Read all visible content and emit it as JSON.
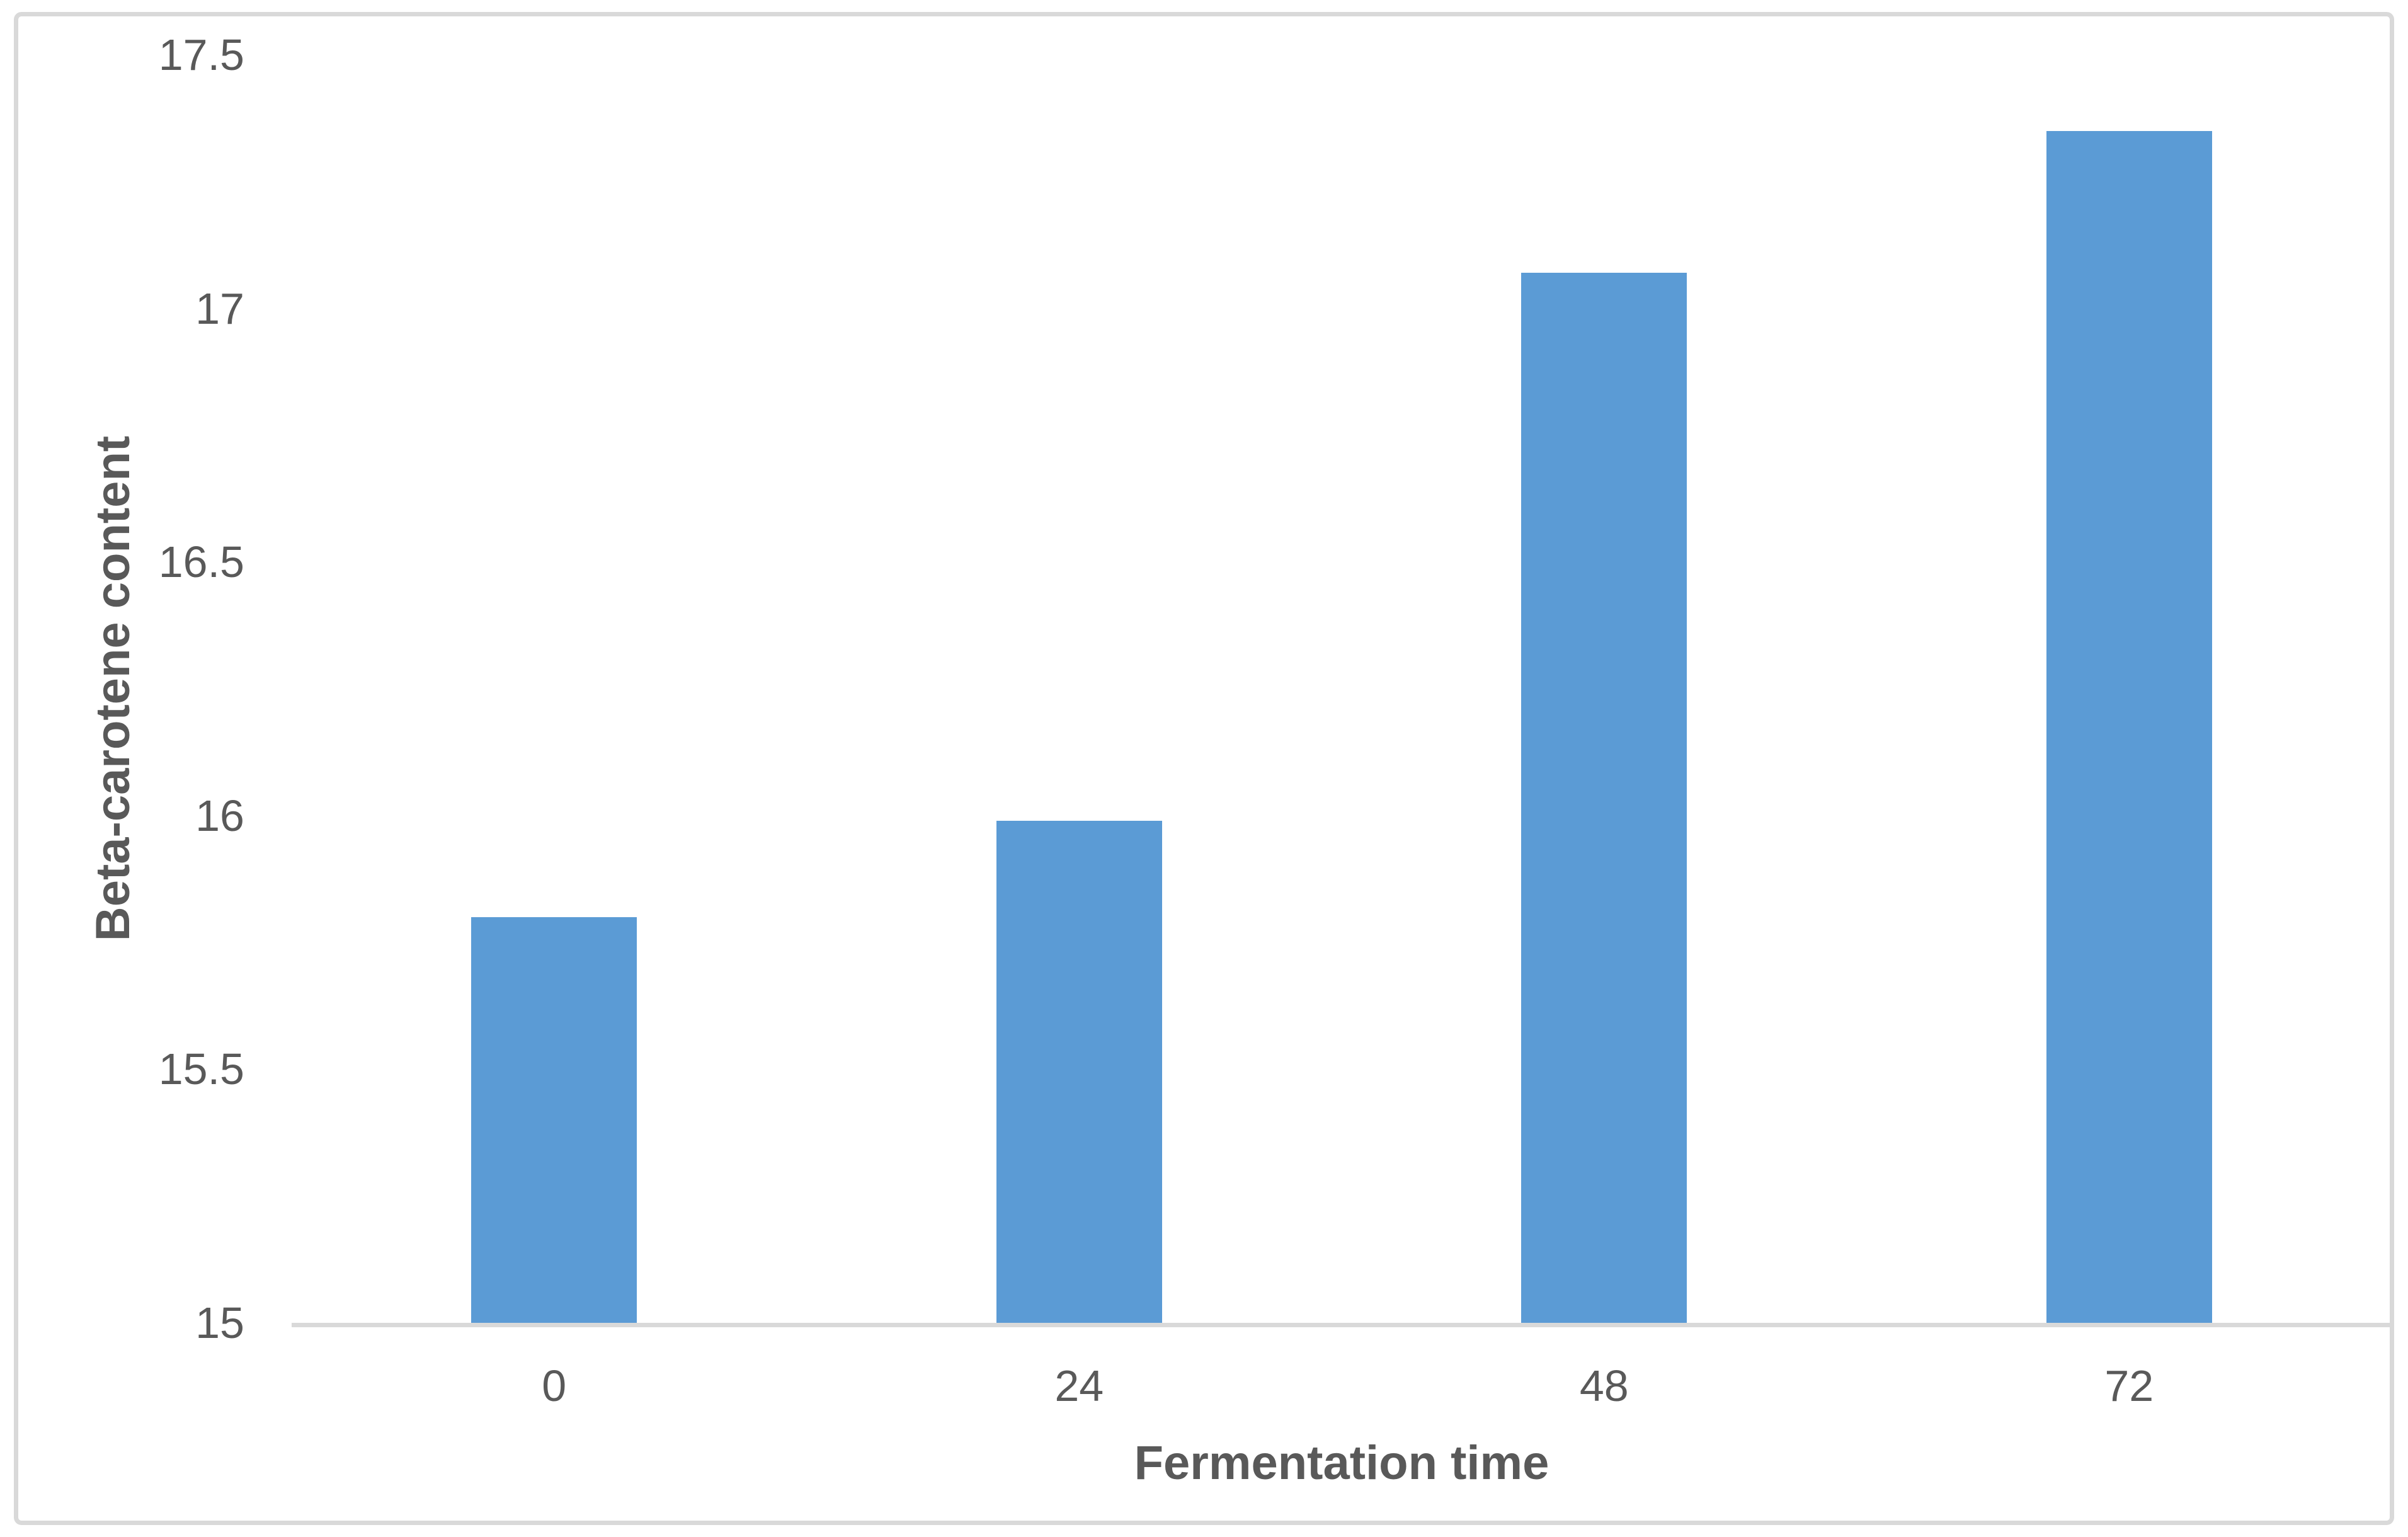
{
  "figure": {
    "background": "#ffffff",
    "border_color": "#d9d9d9",
    "text_color": "#595959"
  },
  "chart_data": {
    "type": "bar",
    "title": "",
    "xlabel": "Fermentation time",
    "ylabel": "Beta-carotene content",
    "categories": [
      "0",
      "24",
      "48",
      "72"
    ],
    "values": [
      15.8,
      15.99,
      17.07,
      17.35
    ],
    "ylim": [
      15,
      17.5
    ],
    "ytick_step": 0.5,
    "ytick_labels": [
      "15",
      "15.5",
      "16",
      "16.5",
      "17",
      "17.5"
    ],
    "bar_color": "#5b9bd5",
    "axis_line_color": "#d9d9d9",
    "grid": false,
    "legend": false
  }
}
